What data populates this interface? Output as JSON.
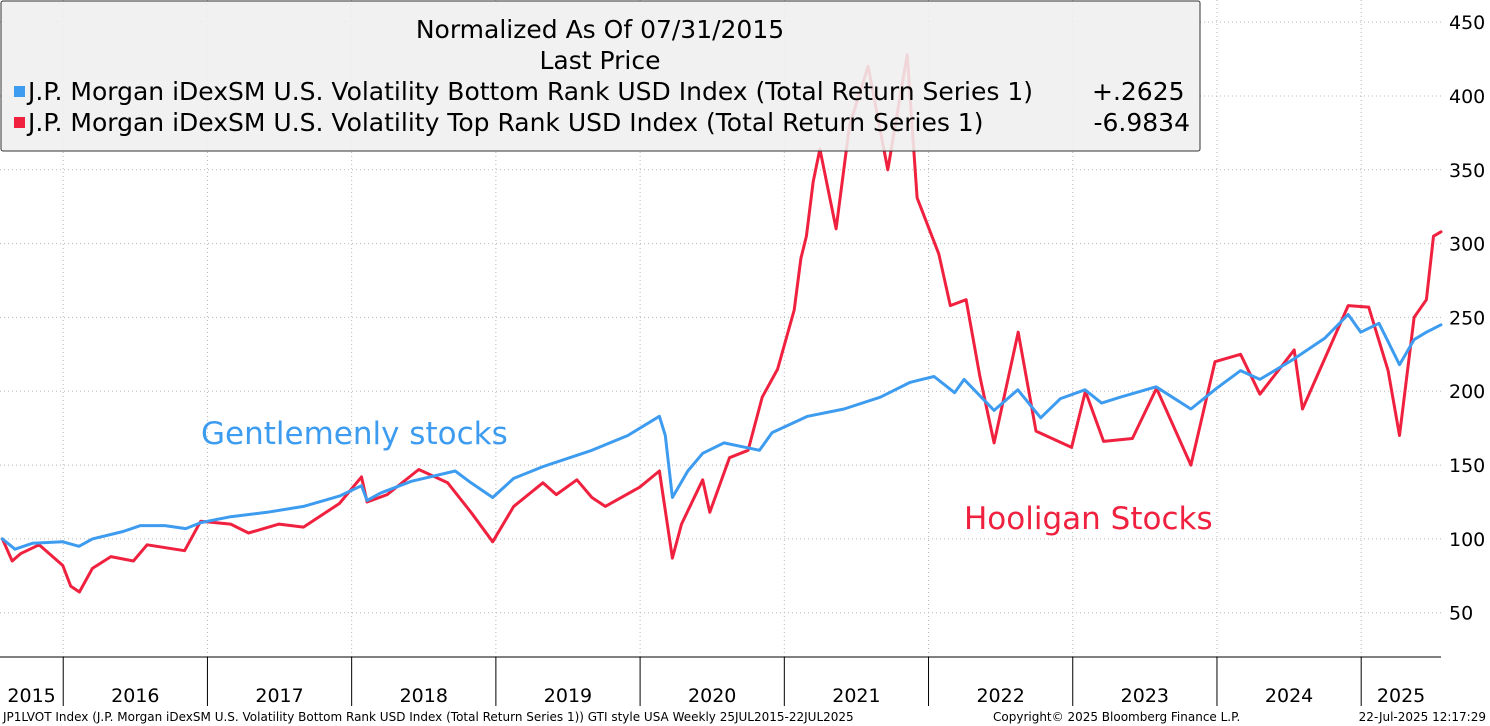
{
  "chart_data": {
    "type": "line",
    "title": "Normalized As Of 07/31/2015",
    "subtitle": "Last Price",
    "x_range": [
      "2015-07-25",
      "2025-07-22"
    ],
    "frequency": "Weekly",
    "ylim": [
      20,
      465
    ],
    "y_ticks": [
      50,
      100,
      150,
      200,
      250,
      300,
      350,
      400,
      450
    ],
    "x_tick_labels": [
      "2015",
      "2016",
      "2017",
      "2018",
      "2019",
      "2020",
      "2021",
      "2022",
      "2023",
      "2024",
      "2025"
    ],
    "grid": true,
    "legend_position": "top-left",
    "series": [
      {
        "name": "J.P. Morgan iDexSM U.S. Volatility Bottom Rank USD Index (Total Return Series 1)",
        "last_change": "+.2625",
        "color": "#3d9cf0",
        "points": [
          [
            "2015-07-31",
            100
          ],
          [
            "2015-09-01",
            93
          ],
          [
            "2015-10-15",
            97
          ],
          [
            "2015-12-31",
            98
          ],
          [
            "2016-02-10",
            95
          ],
          [
            "2016-03-15",
            100
          ],
          [
            "2016-06-01",
            105
          ],
          [
            "2016-07-15",
            109
          ],
          [
            "2016-09-15",
            109
          ],
          [
            "2016-11-07",
            107
          ],
          [
            "2016-12-15",
            111
          ],
          [
            "2017-03-01",
            115
          ],
          [
            "2017-06-01",
            118
          ],
          [
            "2017-09-01",
            122
          ],
          [
            "2017-12-01",
            129
          ],
          [
            "2018-01-26",
            136
          ],
          [
            "2018-02-09",
            126
          ],
          [
            "2018-03-15",
            131
          ],
          [
            "2018-06-01",
            139
          ],
          [
            "2018-09-20",
            146
          ],
          [
            "2018-10-30",
            138
          ],
          [
            "2018-12-24",
            128
          ],
          [
            "2019-02-15",
            141
          ],
          [
            "2019-05-01",
            149
          ],
          [
            "2019-06-15",
            153
          ],
          [
            "2019-09-01",
            160
          ],
          [
            "2019-12-01",
            170
          ],
          [
            "2020-02-19",
            183
          ],
          [
            "2020-03-05",
            170
          ],
          [
            "2020-03-23",
            128
          ],
          [
            "2020-05-01",
            146
          ],
          [
            "2020-06-08",
            158
          ],
          [
            "2020-08-01",
            165
          ],
          [
            "2020-10-30",
            160
          ],
          [
            "2020-12-01",
            172
          ],
          [
            "2021-03-01",
            183
          ],
          [
            "2021-06-01",
            188
          ],
          [
            "2021-09-01",
            196
          ],
          [
            "2021-11-15",
            206
          ],
          [
            "2021-12-15",
            208
          ],
          [
            "2022-01-15",
            210
          ],
          [
            "2022-03-08",
            199
          ],
          [
            "2022-04-01",
            208
          ],
          [
            "2022-06-16",
            187
          ],
          [
            "2022-08-15",
            201
          ],
          [
            "2022-10-12",
            182
          ],
          [
            "2022-12-01",
            195
          ],
          [
            "2023-02-01",
            201
          ],
          [
            "2023-03-15",
            192
          ],
          [
            "2023-05-01",
            196
          ],
          [
            "2023-07-31",
            203
          ],
          [
            "2023-10-27",
            188
          ],
          [
            "2023-12-31",
            202
          ],
          [
            "2024-03-01",
            214
          ],
          [
            "2024-04-19",
            208
          ],
          [
            "2024-07-15",
            222
          ],
          [
            "2024-10-01",
            236
          ],
          [
            "2024-11-29",
            252
          ],
          [
            "2024-12-31",
            240
          ],
          [
            "2025-02-15",
            246
          ],
          [
            "2025-04-08",
            218
          ],
          [
            "2025-05-15",
            235
          ],
          [
            "2025-06-15",
            240
          ],
          [
            "2025-07-22",
            245
          ]
        ]
      },
      {
        "name": "J.P. Morgan iDexSM U.S. Volatility Top Rank USD Index (Total Return Series 1)",
        "last_change": "-6.9834",
        "color": "#f0213f",
        "points": [
          [
            "2015-07-31",
            100
          ],
          [
            "2015-08-25",
            85
          ],
          [
            "2015-09-15",
            90
          ],
          [
            "2015-11-01",
            96
          ],
          [
            "2015-12-31",
            82
          ],
          [
            "2016-01-20",
            68
          ],
          [
            "2016-02-11",
            64
          ],
          [
            "2016-03-15",
            80
          ],
          [
            "2016-05-01",
            88
          ],
          [
            "2016-06-27",
            85
          ],
          [
            "2016-08-01",
            96
          ],
          [
            "2016-11-04",
            92
          ],
          [
            "2016-12-15",
            112
          ],
          [
            "2017-03-01",
            110
          ],
          [
            "2017-04-15",
            104
          ],
          [
            "2017-07-01",
            110
          ],
          [
            "2017-09-01",
            108
          ],
          [
            "2017-12-01",
            124
          ],
          [
            "2018-01-26",
            142
          ],
          [
            "2018-02-09",
            125
          ],
          [
            "2018-04-01",
            130
          ],
          [
            "2018-06-20",
            147
          ],
          [
            "2018-09-01",
            138
          ],
          [
            "2018-10-30",
            118
          ],
          [
            "2018-12-24",
            98
          ],
          [
            "2019-02-15",
            122
          ],
          [
            "2019-04-30",
            138
          ],
          [
            "2019-06-03",
            130
          ],
          [
            "2019-07-25",
            140
          ],
          [
            "2019-09-01",
            128
          ],
          [
            "2019-10-05",
            122
          ],
          [
            "2019-12-31",
            135
          ],
          [
            "2020-02-19",
            146
          ],
          [
            "2020-03-23",
            87
          ],
          [
            "2020-04-15",
            110
          ],
          [
            "2020-06-08",
            140
          ],
          [
            "2020-06-26",
            118
          ],
          [
            "2020-08-15",
            155
          ],
          [
            "2020-10-01",
            160
          ],
          [
            "2020-11-06",
            196
          ],
          [
            "2020-12-15",
            215
          ],
          [
            "2021-01-26",
            255
          ],
          [
            "2021-02-12",
            290
          ],
          [
            "2021-02-26",
            305
          ],
          [
            "2021-03-15",
            342
          ],
          [
            "2021-04-01",
            364
          ],
          [
            "2021-05-12",
            310
          ],
          [
            "2021-06-15",
            380
          ],
          [
            "2021-08-01",
            420
          ],
          [
            "2021-09-20",
            350
          ],
          [
            "2021-11-08",
            428
          ],
          [
            "2021-12-03",
            331
          ],
          [
            "2022-01-27",
            293
          ],
          [
            "2022-02-25",
            258
          ],
          [
            "2022-04-06",
            262
          ],
          [
            "2022-05-11",
            210
          ],
          [
            "2022-06-16",
            165
          ],
          [
            "2022-08-16",
            240
          ],
          [
            "2022-09-30",
            173
          ],
          [
            "2022-12-29",
            162
          ],
          [
            "2023-02-02",
            200
          ],
          [
            "2023-03-20",
            166
          ],
          [
            "2023-06-01",
            168
          ],
          [
            "2023-08-01",
            202
          ],
          [
            "2023-10-27",
            150
          ],
          [
            "2023-12-27",
            220
          ],
          [
            "2024-03-01",
            225
          ],
          [
            "2024-04-19",
            198
          ],
          [
            "2024-07-15",
            228
          ],
          [
            "2024-08-05",
            188
          ],
          [
            "2024-11-29",
            258
          ],
          [
            "2025-01-20",
            257
          ],
          [
            "2025-03-10",
            214
          ],
          [
            "2025-04-08",
            170
          ],
          [
            "2025-05-15",
            250
          ],
          [
            "2025-06-15",
            262
          ],
          [
            "2025-07-03",
            305
          ],
          [
            "2025-07-22",
            308
          ]
        ]
      }
    ],
    "annotations": [
      {
        "text": "Gentlemenly stocks",
        "color": "#3d9cf0"
      },
      {
        "text": "Hooligan Stocks",
        "color": "#f0213f"
      }
    ]
  },
  "footer": {
    "left": "JP1LVOT Index (J.P. Morgan iDexSM U.S. Volatility Bottom Rank USD Index (Total Return Series 1)) GTI style USA  Weekly 25JUL2015-22JUL2025",
    "center": "Copyright© 2025 Bloomberg Finance L.P.",
    "right": "22-Jul-2025 12:17:29"
  }
}
